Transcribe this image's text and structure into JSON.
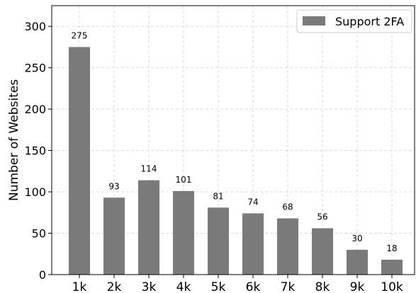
{
  "chart_data": {
    "type": "bar",
    "categories": [
      "1k",
      "2k",
      "3k",
      "4k",
      "5k",
      "6k",
      "7k",
      "8k",
      "9k",
      "10k"
    ],
    "series": [
      {
        "name": "Support 2FA",
        "values": [
          275,
          93,
          114,
          101,
          81,
          74,
          68,
          56,
          30,
          18
        ],
        "color": "#7a7a7a"
      }
    ],
    "xlabel": "",
    "ylabel": "Number of Websites",
    "ylim": [
      0,
      325
    ],
    "yticks": [
      0,
      50,
      100,
      150,
      200,
      250,
      300
    ],
    "grid": true,
    "legend_position": "top-right",
    "data_labels": true
  }
}
